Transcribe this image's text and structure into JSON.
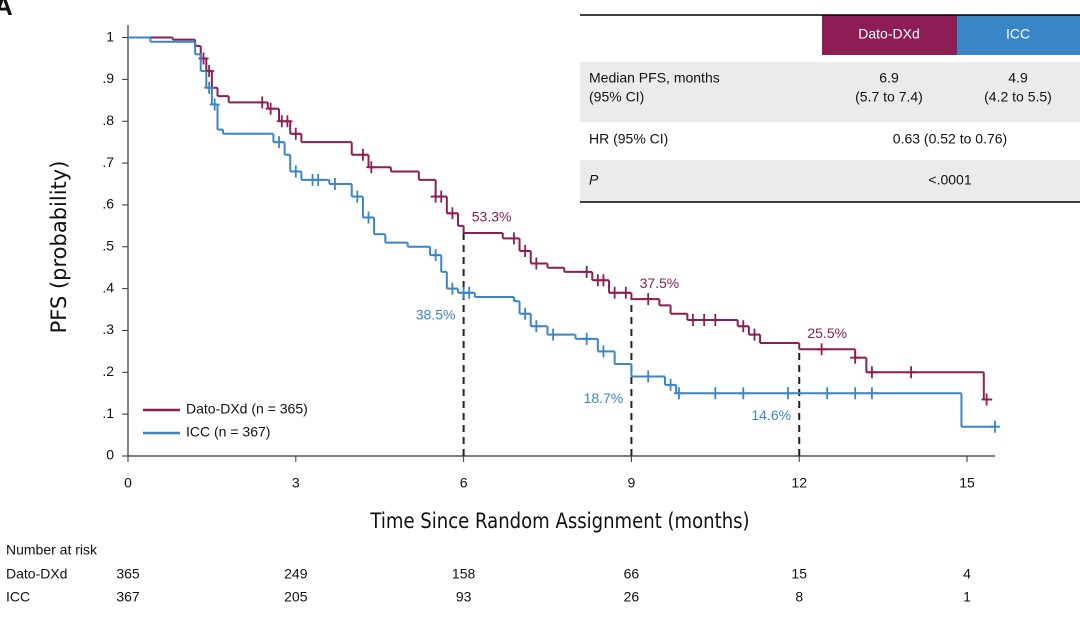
{
  "chart_data": {
    "type": "kaplan-meier",
    "panel_label": "A",
    "x_label": "Time Since Random Assignment (months)",
    "y_label": "PFS (probability)",
    "xlim": [
      0,
      15.5
    ],
    "ylim": [
      0,
      1.03
    ],
    "xticks": [
      0,
      3,
      6,
      9,
      12,
      15
    ],
    "yticks": [
      0,
      {
        "value": 0.1,
        "label": ".1"
      },
      {
        "value": 0.2,
        "label": ".2"
      },
      {
        "value": 0.3,
        "label": ".3"
      },
      {
        "value": 0.4,
        "label": ".4"
      },
      {
        "value": 0.5,
        "label": ".5"
      },
      {
        "value": 0.6,
        "label": ".6"
      },
      {
        "value": 0.7,
        "label": ".7"
      },
      {
        "value": 0.8,
        "label": ".8"
      },
      {
        "value": 0.9,
        "label": ".9"
      },
      1
    ],
    "series": [
      {
        "name": "Dato-DXd (n = 365)",
        "color": "#8c1d55",
        "x": [
          0,
          0.8,
          1.2,
          1.3,
          1.4,
          1.5,
          1.6,
          1.8,
          2.5,
          2.7,
          2.9,
          3.1,
          4.0,
          4.3,
          4.7,
          5.2,
          5.5,
          5.7,
          5.9,
          6.0,
          6.7,
          7.0,
          7.2,
          7.5,
          7.8,
          8.3,
          8.6,
          9.0,
          9.5,
          9.7,
          10.0,
          10.9,
          11.1,
          11.3,
          12.0,
          13.0,
          13.2,
          15.3,
          15.45
        ],
        "values": [
          1,
          0.995,
          0.98,
          0.95,
          0.92,
          0.88,
          0.86,
          0.845,
          0.83,
          0.8,
          0.77,
          0.75,
          0.72,
          0.69,
          0.68,
          0.66,
          0.62,
          0.58,
          0.55,
          0.533,
          0.52,
          0.49,
          0.46,
          0.45,
          0.44,
          0.42,
          0.39,
          0.375,
          0.36,
          0.34,
          0.325,
          0.31,
          0.29,
          0.27,
          0.255,
          0.235,
          0.2,
          0.135,
          0.135
        ],
        "censored_x": [
          1.35,
          1.45,
          2.4,
          2.55,
          2.75,
          2.85,
          3.0,
          4.2,
          4.35,
          5.5,
          5.6,
          5.8,
          6.9,
          7.1,
          7.3,
          8.2,
          8.4,
          8.5,
          8.7,
          8.9,
          9.3,
          10.1,
          10.3,
          10.5,
          11.0,
          11.2,
          12.4,
          13.0,
          13.3,
          14.0,
          15.35
        ],
        "landmarks": [
          {
            "x": 6,
            "label": "53.3%"
          },
          {
            "x": 9,
            "label": "37.5%"
          },
          {
            "x": 12,
            "label": "25.5%"
          }
        ]
      },
      {
        "name": "ICC (n = 367)",
        "color": "#3a85c6",
        "x": [
          0,
          0.4,
          1.2,
          1.3,
          1.4,
          1.5,
          1.6,
          1.7,
          2.6,
          2.8,
          2.9,
          3.1,
          3.6,
          4.0,
          4.2,
          4.4,
          4.6,
          5.0,
          5.4,
          5.6,
          5.7,
          5.9,
          6.2,
          6.9,
          7.0,
          7.2,
          7.5,
          8.0,
          8.4,
          8.7,
          9.0,
          9.6,
          9.8,
          14.9,
          15.5
        ],
        "values": [
          1,
          0.99,
          0.96,
          0.92,
          0.88,
          0.84,
          0.78,
          0.77,
          0.75,
          0.72,
          0.68,
          0.66,
          0.65,
          0.62,
          0.57,
          0.53,
          0.51,
          0.5,
          0.48,
          0.44,
          0.4,
          0.39,
          0.38,
          0.37,
          0.34,
          0.31,
          0.29,
          0.28,
          0.25,
          0.22,
          0.19,
          0.17,
          0.15,
          0.07,
          0.07
        ],
        "censored_x": [
          1.45,
          1.55,
          2.7,
          3.0,
          3.3,
          3.4,
          3.7,
          4.1,
          4.3,
          5.5,
          5.8,
          6.0,
          6.1,
          7.1,
          7.3,
          7.6,
          8.2,
          8.5,
          9.3,
          9.7,
          9.85,
          10.5,
          11.0,
          11.8,
          12.5,
          13.0,
          13.3,
          15.5
        ],
        "landmarks": [
          {
            "x": 6,
            "label": "38.5%"
          },
          {
            "x": 9,
            "label": "18.7%"
          },
          {
            "x": 12,
            "label": "14.6%"
          }
        ]
      }
    ],
    "summary_table": {
      "columns": [
        "Dato-DXd",
        "ICC"
      ],
      "rows": [
        {
          "label": [
            "Median PFS, months",
            "(95% CI)"
          ],
          "cells": [
            [
              "6.9",
              "(5.7 to 7.4)"
            ],
            [
              "4.9",
              "(4.2 to 5.5)"
            ]
          ]
        },
        {
          "label": [
            "HR (95% CI)"
          ],
          "cells": [
            [
              "0.63 (0.52 to 0.76)"
            ]
          ]
        },
        {
          "label": [
            "P"
          ],
          "cells": [
            [
              "<.0001"
            ]
          ]
        }
      ]
    },
    "risk_table": {
      "title": "Number at risk",
      "rows": [
        {
          "name": "Dato-DXd",
          "values": [
            365,
            249,
            158,
            66,
            15,
            4
          ]
        },
        {
          "name": "ICC",
          "values": [
            367,
            205,
            93,
            26,
            8,
            1
          ]
        }
      ]
    }
  }
}
